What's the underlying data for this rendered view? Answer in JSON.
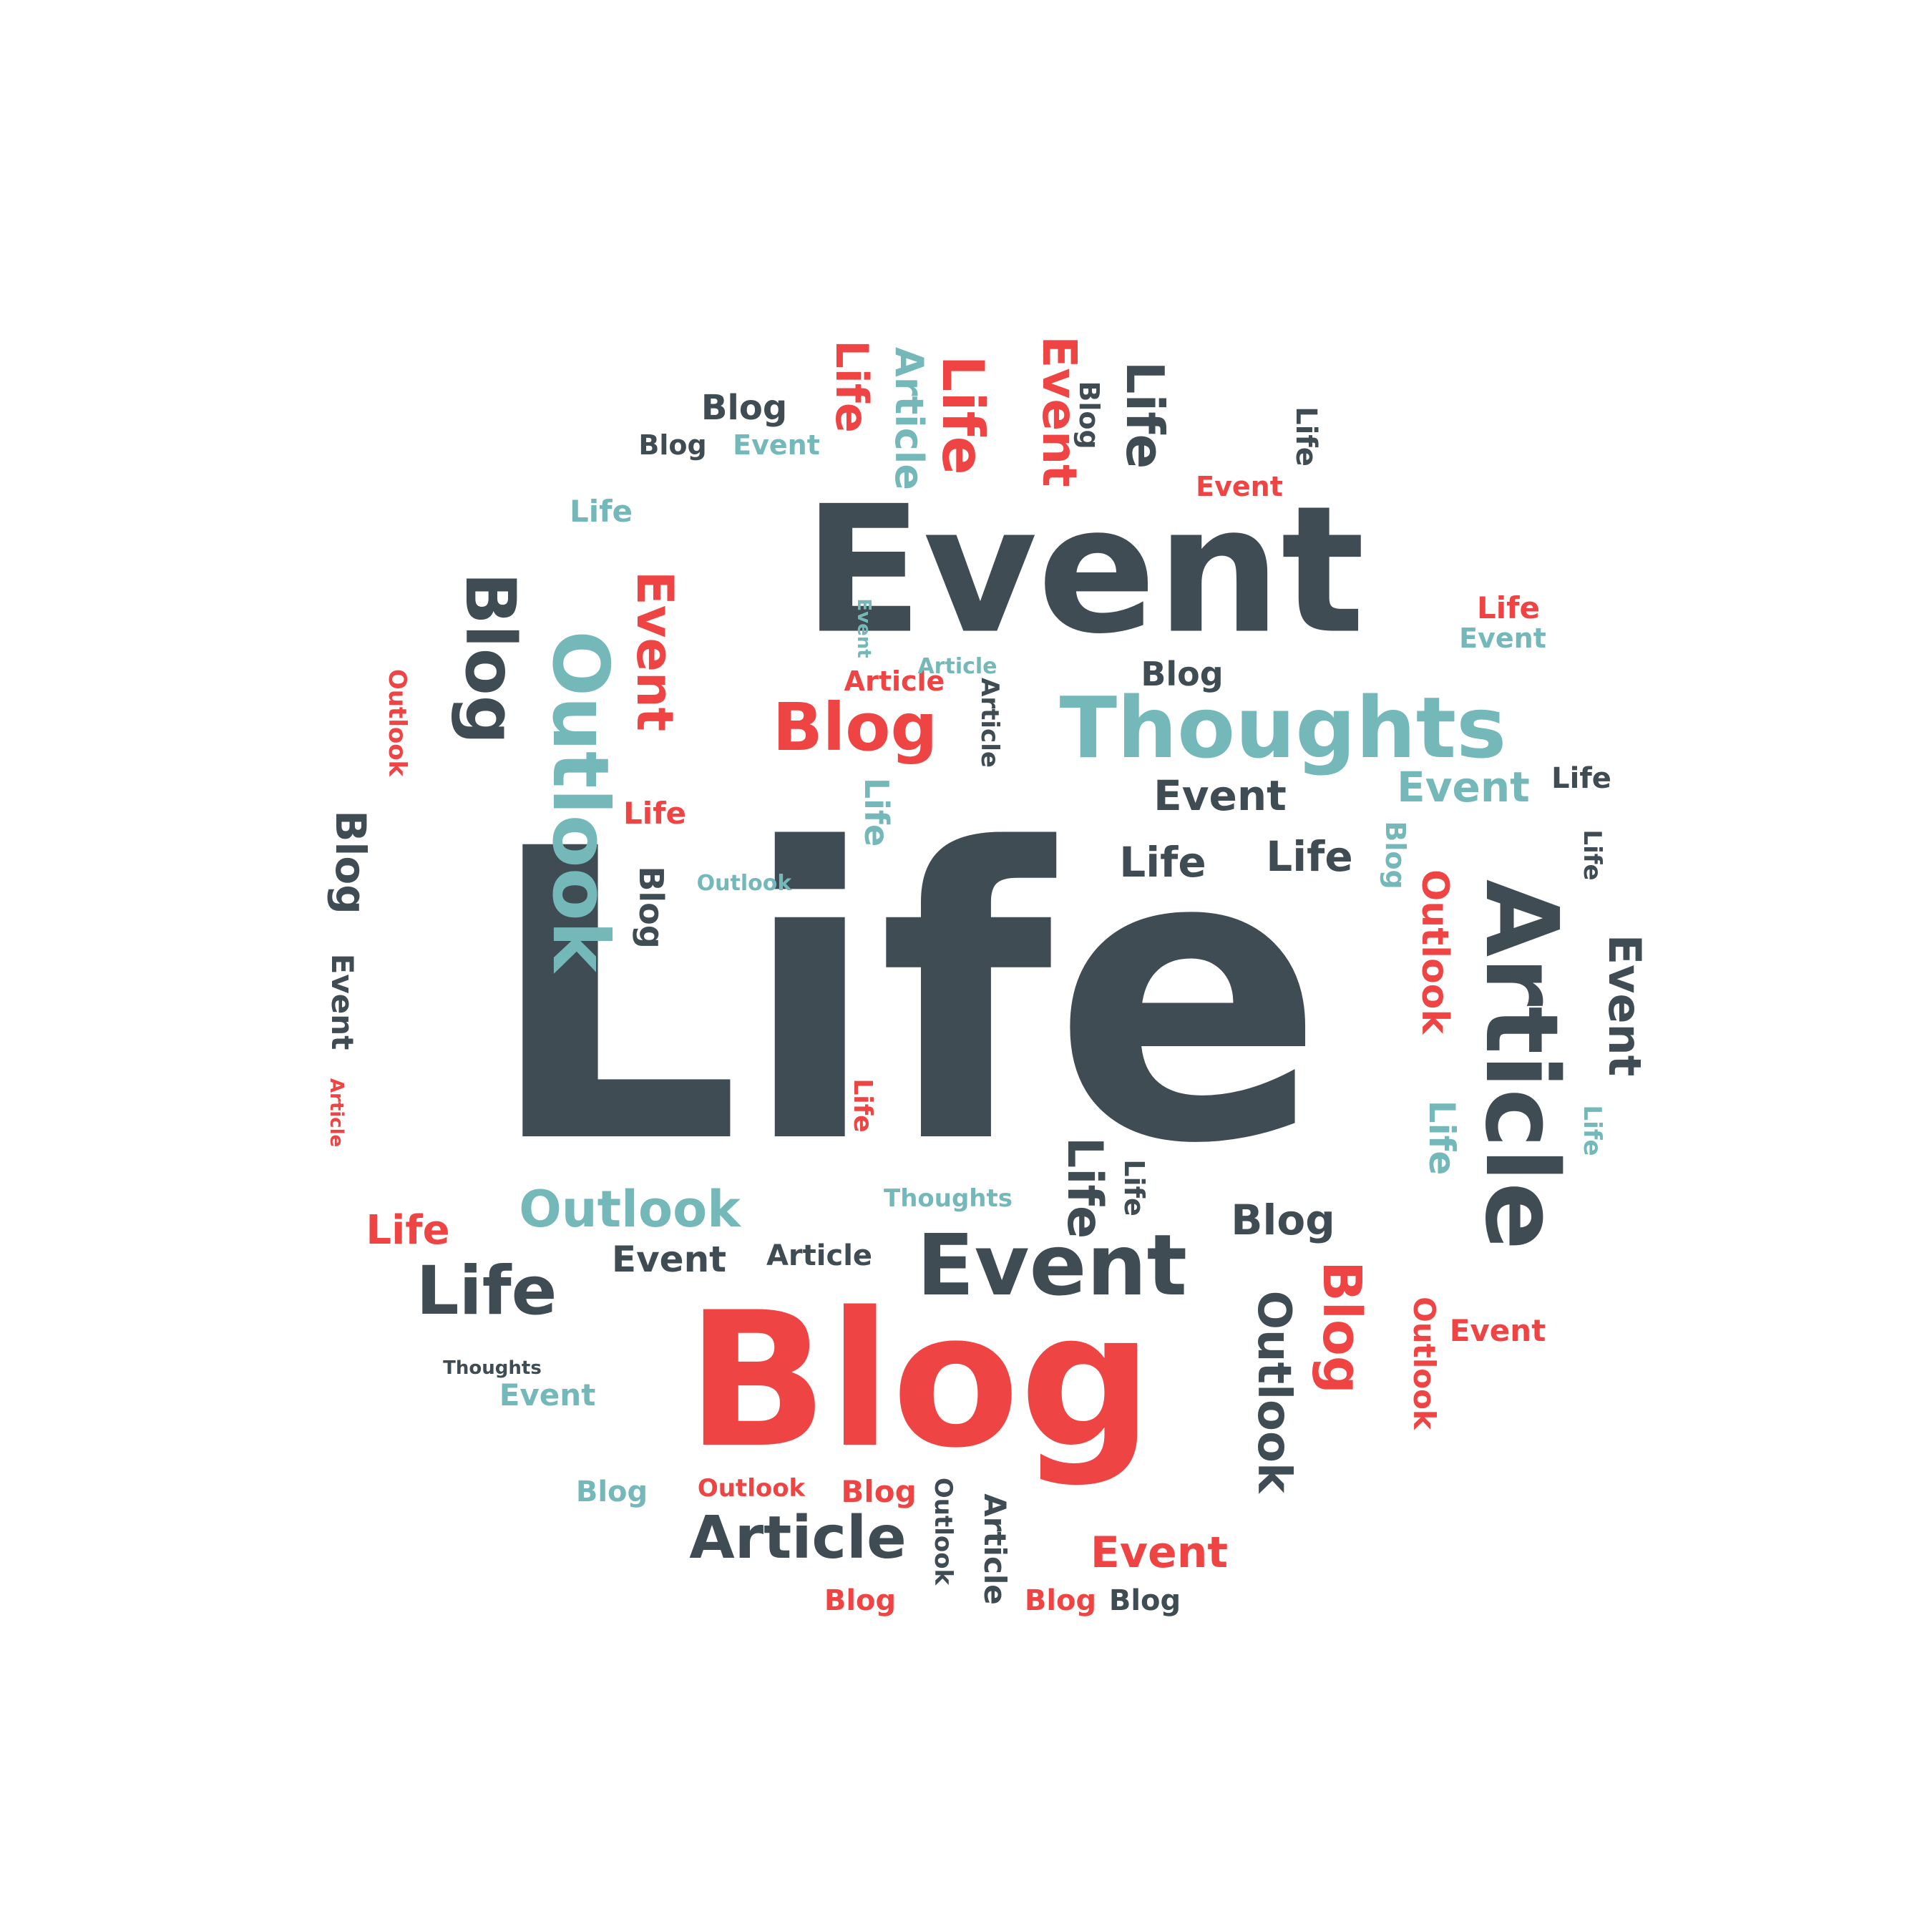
{
  "colors": {
    "dark": "#3f4c53",
    "red": "#ef4444",
    "teal": "#74b8b9",
    "background": "#ffffff"
  },
  "words": [
    {
      "text": "Life",
      "color": "dark"
    },
    {
      "text": "Event",
      "color": "dark"
    },
    {
      "text": "Blog",
      "color": "red"
    },
    {
      "text": "Thoughts",
      "color": "teal"
    },
    {
      "text": "Article",
      "color": "dark"
    },
    {
      "text": "Outlook",
      "color": "teal"
    },
    {
      "text": "Blog",
      "color": "dark"
    },
    {
      "text": "Event",
      "color": "red"
    },
    {
      "text": "Blog",
      "color": "red"
    },
    {
      "text": "Life",
      "color": "red"
    },
    {
      "text": "Event",
      "color": "red"
    },
    {
      "text": "Life",
      "color": "red"
    },
    {
      "text": "Article",
      "color": "teal"
    },
    {
      "text": "Life",
      "color": "dark"
    },
    {
      "text": "Blog",
      "color": "dark"
    },
    {
      "text": "Blog",
      "color": "dark"
    },
    {
      "text": "Event",
      "color": "teal"
    },
    {
      "text": "Blog",
      "color": "dark"
    },
    {
      "text": "Life",
      "color": "dark"
    },
    {
      "text": "Event",
      "color": "red"
    },
    {
      "text": "Life",
      "color": "teal"
    },
    {
      "text": "Life",
      "color": "red"
    },
    {
      "text": "Event",
      "color": "teal"
    },
    {
      "text": "Event",
      "color": "teal"
    },
    {
      "text": "Article",
      "color": "red"
    },
    {
      "text": "Article",
      "color": "teal"
    },
    {
      "text": "Blog",
      "color": "dark"
    },
    {
      "text": "Article",
      "color": "dark"
    },
    {
      "text": "Outlook",
      "color": "red"
    },
    {
      "text": "Event",
      "color": "dark"
    },
    {
      "text": "Event",
      "color": "teal"
    },
    {
      "text": "Life",
      "color": "dark"
    },
    {
      "text": "Life",
      "color": "teal"
    },
    {
      "text": "Blog",
      "color": "teal"
    },
    {
      "text": "Life",
      "color": "dark"
    },
    {
      "text": "Life",
      "color": "dark"
    },
    {
      "text": "Life",
      "color": "red"
    },
    {
      "text": "Blog",
      "color": "dark"
    },
    {
      "text": "Outlook",
      "color": "teal"
    },
    {
      "text": "Blog",
      "color": "dark"
    },
    {
      "text": "Event",
      "color": "dark"
    },
    {
      "text": "Article",
      "color": "red"
    },
    {
      "text": "Outlook",
      "color": "red"
    },
    {
      "text": "Event",
      "color": "dark"
    },
    {
      "text": "Life",
      "color": "dark"
    },
    {
      "text": "Life",
      "color": "teal"
    },
    {
      "text": "Life",
      "color": "teal"
    },
    {
      "text": "Life",
      "color": "red"
    },
    {
      "text": "Outlook",
      "color": "teal"
    },
    {
      "text": "Thoughts",
      "color": "teal"
    },
    {
      "text": "Life",
      "color": "dark"
    },
    {
      "text": "Life",
      "color": "dark"
    },
    {
      "text": "Blog",
      "color": "dark"
    },
    {
      "text": "Life",
      "color": "red"
    },
    {
      "text": "Event",
      "color": "dark"
    },
    {
      "text": "Article",
      "color": "dark"
    },
    {
      "text": "Event",
      "color": "dark"
    },
    {
      "text": "Life",
      "color": "dark"
    },
    {
      "text": "Outlook",
      "color": "dark"
    },
    {
      "text": "Blog",
      "color": "red"
    },
    {
      "text": "Outlook",
      "color": "red"
    },
    {
      "text": "Event",
      "color": "red"
    },
    {
      "text": "Thoughts",
      "color": "dark"
    },
    {
      "text": "Event",
      "color": "teal"
    },
    {
      "text": "Blog",
      "color": "teal"
    },
    {
      "text": "Outlook",
      "color": "red"
    },
    {
      "text": "Blog",
      "color": "red"
    },
    {
      "text": "Outlook",
      "color": "dark"
    },
    {
      "text": "Article",
      "color": "dark"
    },
    {
      "text": "Article",
      "color": "dark"
    },
    {
      "text": "Event",
      "color": "red"
    },
    {
      "text": "Blog",
      "color": "red"
    },
    {
      "text": "Blog",
      "color": "red"
    },
    {
      "text": "Blog",
      "color": "dark"
    }
  ]
}
